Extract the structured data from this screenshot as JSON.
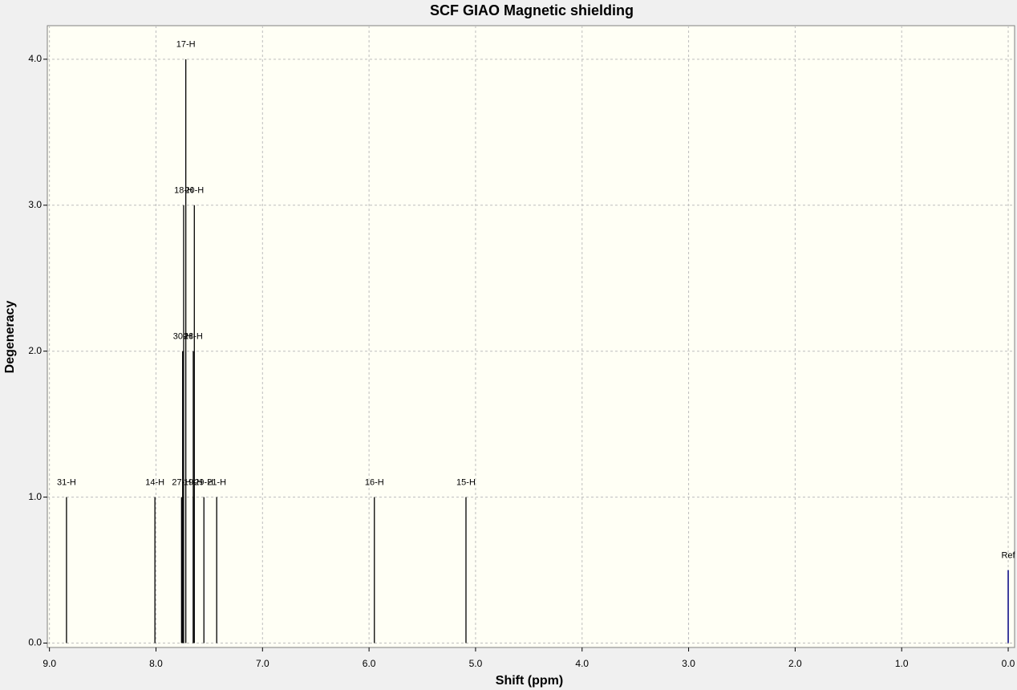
{
  "chart_data": {
    "type": "stick",
    "title": "SCF GIAO Magnetic shielding",
    "x_label": "Shift (ppm)",
    "y_label": "Degeneracy",
    "x": [
      8.84,
      8.01,
      7.76,
      7.75,
      7.74,
      7.72,
      7.65,
      7.64,
      7.65,
      7.55,
      7.43,
      5.95,
      5.09
    ],
    "values": [
      1,
      1,
      1,
      2,
      3,
      4,
      2,
      3,
      1,
      1,
      1,
      1,
      1
    ],
    "point_labels": [
      "31-H",
      "14-H",
      "27-H",
      "30-H",
      "18-H",
      "17-H",
      "28-H",
      "20-H",
      "19-H",
      "29-H",
      "21-H",
      "16-H",
      "15-H"
    ],
    "color": "#000000",
    "ref": {
      "label": "Ref",
      "x": 0.0,
      "value": 0.5,
      "color": "#000080"
    },
    "xlim": [
      9.02,
      -0.06
    ],
    "ylim": [
      -0.03,
      4.23
    ],
    "xticks": [
      {
        "value": 9,
        "label": "9.0"
      },
      {
        "value": 8,
        "label": "8.0"
      },
      {
        "value": 7,
        "label": "7.0"
      },
      {
        "value": 6,
        "label": "6.0"
      },
      {
        "value": 5,
        "label": "5.0"
      },
      {
        "value": 4,
        "label": "4.0"
      },
      {
        "value": 3,
        "label": "3.0"
      },
      {
        "value": 2,
        "label": "2.0"
      },
      {
        "value": 1,
        "label": "1.0"
      },
      {
        "value": 0,
        "label": "0.0"
      }
    ],
    "yticks": [
      {
        "value": 0,
        "label": "0.0"
      },
      {
        "value": 1,
        "label": "1.0"
      },
      {
        "value": 2,
        "label": "2.0"
      },
      {
        "value": 3,
        "label": "3.0"
      },
      {
        "value": 4,
        "label": "4.0"
      }
    ],
    "grid": true
  }
}
